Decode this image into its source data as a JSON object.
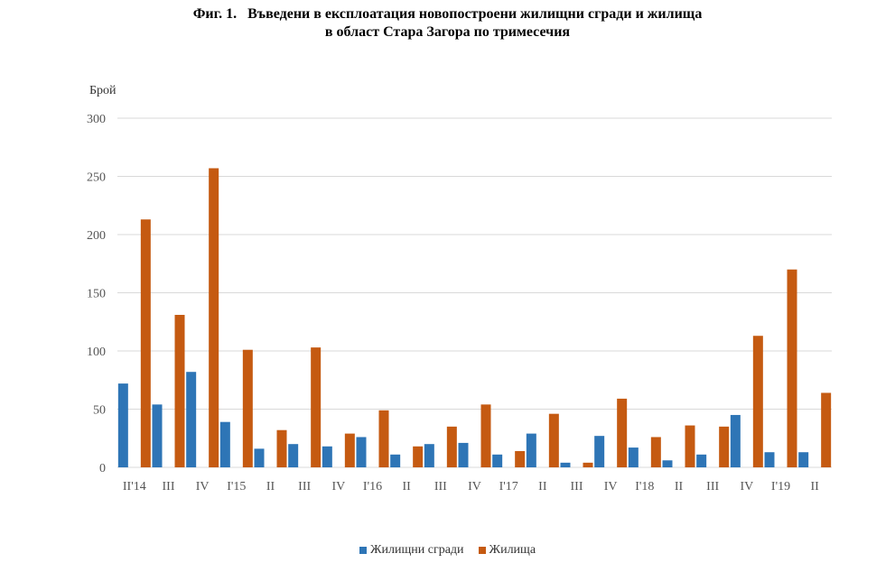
{
  "chart_data": {
    "type": "bar",
    "title": [
      "Фиг. 1.   Въведени в експлоатация новопостроени жилищни сгради и жилища",
      "в област Стара Загора по тримесечия"
    ],
    "ylabel": "Брой",
    "ylim": [
      0,
      300
    ],
    "yticks": [
      0,
      50,
      100,
      150,
      200,
      250,
      300
    ],
    "grid": true,
    "legend_position": "bottom",
    "categories": [
      "II'14",
      "III",
      "IV",
      "I'15",
      "II",
      "III",
      "IV",
      "I'16",
      "II",
      "III",
      "IV",
      "I'17",
      "II",
      "III",
      "IV",
      "I'18",
      "II",
      "III",
      "IV",
      "I'19",
      "II"
    ],
    "series": [
      {
        "name": "Жилищни сгради",
        "color": "#2e75b6",
        "values": [
          72,
          54,
          82,
          39,
          16,
          20,
          18,
          26,
          11,
          20,
          21,
          11,
          29,
          4,
          27,
          17,
          6,
          11,
          45,
          13,
          13
        ]
      },
      {
        "name": "Жилища",
        "color": "#c55a11",
        "values": [
          213,
          131,
          257,
          101,
          32,
          103,
          29,
          49,
          18,
          35,
          54,
          14,
          46,
          4,
          59,
          26,
          36,
          35,
          113,
          170,
          64
        ]
      }
    ]
  }
}
